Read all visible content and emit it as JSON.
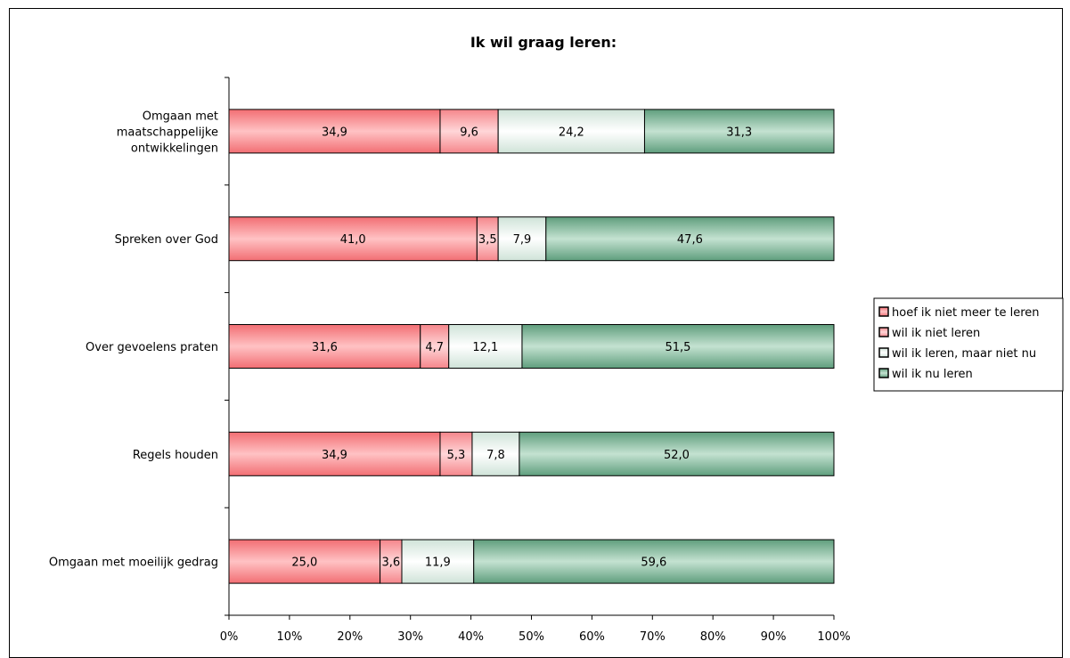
{
  "chart_data": {
    "type": "bar",
    "orientation": "horizontal",
    "stacked": "percent",
    "title": "Ik wil graag leren:",
    "categories": [
      [
        "Omgaan met",
        "maatschappelijke",
        "ontwikkelingen"
      ],
      [
        "Spreken over God"
      ],
      [
        "Over gevoelens praten"
      ],
      [
        "Regels houden"
      ],
      [
        "Omgaan met moeilijk gedrag"
      ]
    ],
    "series": [
      {
        "name": "hoef ik niet meer te leren",
        "values": [
          34.9,
          41.0,
          31.6,
          34.9,
          25.0
        ],
        "labels": [
          "34,9",
          "41,0",
          "31,6",
          "34,9",
          "25,0"
        ],
        "color": "#f26e73",
        "highlight": "#ffc2c4"
      },
      {
        "name": "wil ik niet leren",
        "values": [
          9.6,
          3.5,
          4.7,
          5.3,
          3.6
        ],
        "labels": [
          "9,6",
          "3,5",
          "4,7",
          "5,3",
          "3,6"
        ],
        "color": "#f5868b",
        "highlight": "#ffd6d8"
      },
      {
        "name": "wil ik leren, maar niet nu",
        "values": [
          24.2,
          7.9,
          12.1,
          7.8,
          11.9
        ],
        "labels": [
          "24,2",
          "7,9",
          "12,1",
          "7,8",
          "11,9"
        ],
        "color": "#cfe3d8",
        "highlight": "#ffffff"
      },
      {
        "name": "wil ik nu leren",
        "values": [
          31.3,
          47.6,
          51.5,
          52.0,
          59.6
        ],
        "labels": [
          "31,3",
          "47,6",
          "51,5",
          "52,0",
          "59,6"
        ],
        "color": "#5f9e7d",
        "highlight": "#c4e2d1"
      }
    ],
    "xlim": [
      0,
      100
    ],
    "xticks": [
      "0%",
      "10%",
      "20%",
      "30%",
      "40%",
      "50%",
      "60%",
      "70%",
      "80%",
      "90%",
      "100%"
    ],
    "legend_position": "right",
    "grid": false
  }
}
